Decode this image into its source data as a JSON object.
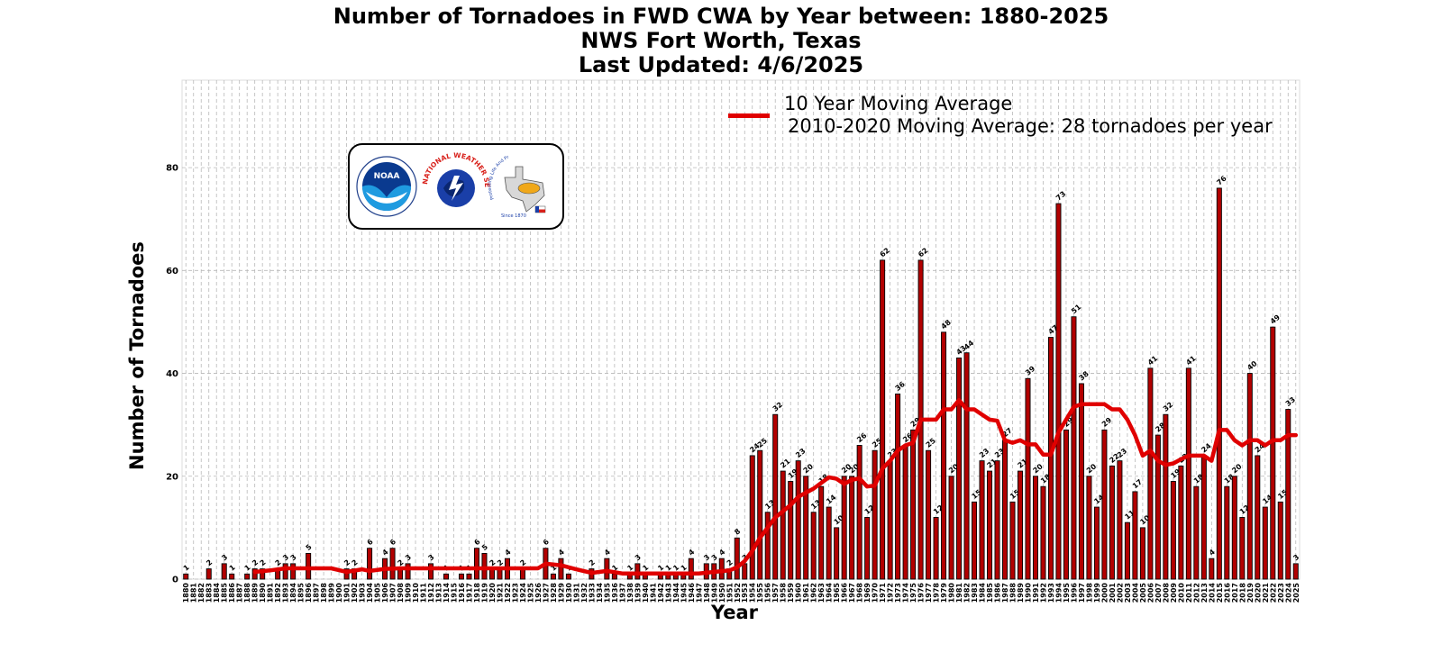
{
  "chart_data": {
    "type": "bar",
    "title": "Number of Tornadoes in FWD CWA by Year between: 1880-2025",
    "subtitle": "NWS Fort Worth, Texas",
    "updated": "Last Updated: 4/6/2025",
    "xlabel": "Year",
    "ylabel": "Number of Tornadoes",
    "ylim": [
      0,
      97
    ],
    "yticks": [
      0,
      20,
      40,
      60,
      80
    ],
    "grid": true,
    "legend_position": "top-right",
    "legend": [
      "10 Year Moving Average",
      "2010-2020 Moving Average: 28 tornadoes per year"
    ],
    "x_start": 1880,
    "x_end": 2025,
    "values": {
      "1880": 1,
      "1883": 2,
      "1885": 3,
      "1886": 1,
      "1888": 1,
      "1889": 2,
      "1890": 2,
      "1892": 2,
      "1893": 3,
      "1894": 3,
      "1896": 5,
      "1901": 2,
      "1902": 2,
      "1904": 6,
      "1906": 4,
      "1907": 6,
      "1908": 2,
      "1909": 3,
      "1912": 3,
      "1914": 1,
      "1916": 1,
      "1917": 1,
      "1918": 6,
      "1919": 5,
      "1920": 2,
      "1921": 2,
      "1922": 4,
      "1924": 2,
      "1927": 6,
      "1928": 1,
      "1929": 4,
      "1930": 1,
      "1933": 2,
      "1935": 4,
      "1936": 1,
      "1938": 1,
      "1939": 3,
      "1940": 1,
      "1942": 1,
      "1943": 1,
      "1944": 1,
      "1945": 1,
      "1946": 4,
      "1948": 3,
      "1949": 3,
      "1950": 4,
      "1951": 2,
      "1952": 8,
      "1953": 3,
      "1954": 24,
      "1955": 25,
      "1956": 13,
      "1957": 32,
      "1958": 21,
      "1959": 19,
      "1960": 23,
      "1961": 20,
      "1962": 13,
      "1963": 18,
      "1964": 14,
      "1965": 10,
      "1966": 20,
      "1967": 20,
      "1968": 26,
      "1969": 12,
      "1970": 25,
      "1971": 62,
      "1972": 23,
      "1973": 36,
      "1974": 26,
      "1975": 29,
      "1976": 62,
      "1977": 25,
      "1978": 12,
      "1979": 48,
      "1980": 20,
      "1981": 43,
      "1982": 44,
      "1983": 15,
      "1984": 23,
      "1985": 21,
      "1986": 23,
      "1987": 27,
      "1988": 15,
      "1989": 21,
      "1990": 39,
      "1991": 20,
      "1992": 18,
      "1993": 47,
      "1994": 73,
      "1995": 29,
      "1996": 51,
      "1997": 38,
      "1998": 20,
      "1999": 14,
      "2000": 29,
      "2001": 22,
      "2002": 23,
      "2003": 11,
      "2004": 17,
      "2005": 10,
      "2006": 41,
      "2007": 28,
      "2008": 32,
      "2009": 19,
      "2010": 22,
      "2011": 41,
      "2012": 18,
      "2013": 24,
      "2014": 4,
      "2015": 76,
      "2016": 18,
      "2017": 20,
      "2018": 12,
      "2019": 40,
      "2020": 24,
      "2021": 14,
      "2022": 49,
      "2023": 15,
      "2024": 33,
      "2025": 3
    },
    "moving_average": {
      "name": "10 Year Moving Average",
      "color": "#e00000",
      "x": [
        1889,
        1891,
        1893,
        1895,
        1897,
        1899,
        1901,
        1903,
        1904,
        1906,
        1908,
        1910,
        1912,
        1915,
        1918,
        1920,
        1922,
        1924,
        1926,
        1927,
        1929,
        1931,
        1933,
        1935,
        1937,
        1939,
        1942,
        1945,
        1947,
        1949,
        1951,
        1952,
        1953,
        1954,
        1955,
        1956,
        1957,
        1958,
        1959,
        1960,
        1961,
        1962,
        1963,
        1964,
        1965,
        1966,
        1967,
        1968,
        1969,
        1970,
        1971,
        1972,
        1973,
        1974,
        1975,
        1976,
        1977,
        1978,
        1979,
        1980,
        1981,
        1982,
        1983,
        1984,
        1985,
        1986,
        1987,
        1988,
        1989,
        1990,
        1991,
        1992,
        1993,
        1994,
        1995,
        1996,
        1997,
        1998,
        1999,
        2000,
        2001,
        2002,
        2003,
        2004,
        2005,
        2006,
        2007,
        2008,
        2009,
        2010,
        2011,
        2012,
        2013,
        2014,
        2015,
        2016,
        2017,
        2018,
        2019,
        2020,
        2021,
        2022,
        2023,
        2024,
        2025
      ],
      "y": [
        1.4,
        1.7,
        2.1,
        2.1,
        2.1,
        2.1,
        1.4,
        1.9,
        1.6,
        2.0,
        2.1,
        2.1,
        2.1,
        2.1,
        2.1,
        2.1,
        2.1,
        2.1,
        2.1,
        3.0,
        2.7,
        1.9,
        1.2,
        1.6,
        1.1,
        1.1,
        1.1,
        1.1,
        1.1,
        1.4,
        1.7,
        2.3,
        3.5,
        5.5,
        8.0,
        10.0,
        12.0,
        13.2,
        14.4,
        16.0,
        16.8,
        17.6,
        18.7,
        19.8,
        19.5,
        18.5,
        19.3,
        19.6,
        18.0,
        18.2,
        21.5,
        23.0,
        25.0,
        26.0,
        26.5,
        31.0,
        31.0,
        31.0,
        33.0,
        33.0,
        34.8,
        33.0,
        33.0,
        32.0,
        31.0,
        30.8,
        27.0,
        26.5,
        27.0,
        26.2,
        26.2,
        24.2,
        24.2,
        28.5,
        31.0,
        33.5,
        34.0,
        34.0,
        34.0,
        34.0,
        33.0,
        33.0,
        31.0,
        28.0,
        24.0,
        25.0,
        23.0,
        22.2,
        22.5,
        23.3,
        24.0,
        24.0,
        24.0,
        23.0,
        29.0,
        29.0,
        27.0,
        26.0,
        27.0,
        27.0,
        26.0,
        27.0,
        27.0,
        28.0,
        28.0
      ]
    }
  },
  "logo": {
    "noaa_text": "NOAA",
    "nws_arc": "NATIONAL WEATHER SERVICE",
    "wfo_arc": "Protecting Life And Property Across North Texas",
    "since": "Since 1870"
  }
}
